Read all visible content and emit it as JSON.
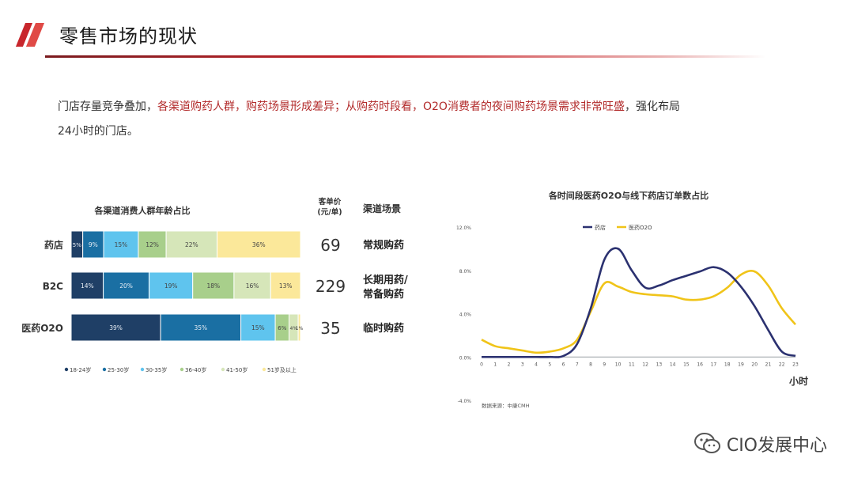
{
  "header": {
    "title": "零售市场的现状",
    "accent_colors": [
      "#c8262c",
      "#e04a46"
    ]
  },
  "intro": {
    "part1": "门店存量竞争叠加，",
    "part2": "各渠道购药人群，购药场景形成差异；从购药时段看，O2O消费者的夜间购药场景需求非常旺盛",
    "part3": "，强化布局",
    "part4": "24小时的门店。"
  },
  "watermark": {
    "text": "CIO发展中心",
    "icon": "wechat-icon"
  },
  "chart_data": [
    {
      "type": "bar",
      "orientation": "horizontal",
      "stacked": true,
      "title": "各渠道消费人群年龄占比",
      "categories": [
        "药店",
        "B2C",
        "医药O2O"
      ],
      "series": [
        {
          "name": "18-24岁",
          "color": "#1f3f66",
          "values": [
            5,
            14,
            39
          ]
        },
        {
          "name": "25-30岁",
          "color": "#1a6fa3",
          "values": [
            9,
            20,
            35
          ]
        },
        {
          "name": "30-35岁",
          "color": "#5fc4ee",
          "values": [
            15,
            19,
            15
          ]
        },
        {
          "name": "36-40岁",
          "color": "#a8cf8b",
          "values": [
            12,
            18,
            6
          ]
        },
        {
          "name": "41-50岁",
          "color": "#d6e6b9",
          "values": [
            22,
            16,
            4
          ]
        },
        {
          "name": "51岁及以上",
          "color": "#fbe89a",
          "values": [
            36,
            13,
            1
          ]
        }
      ],
      "data_labels": [
        [
          "5%",
          "9%",
          "15%",
          "12%",
          "22%",
          "36%"
        ],
        [
          "14%",
          "20%",
          "19%",
          "18%",
          "16%",
          "13%"
        ],
        [
          "39%",
          "35%",
          "15%",
          "6%",
          "4%",
          "1%"
        ]
      ],
      "side_table": {
        "price_header": "客单价\n(元/单)",
        "scene_header": "渠道场景",
        "rows": [
          {
            "price": "69",
            "scene": "常规购药"
          },
          {
            "price": "229",
            "scene": "长期用药/\n常备购药"
          },
          {
            "price": "35",
            "scene": "临时购药"
          }
        ]
      }
    },
    {
      "type": "line",
      "title": "各时间段医药O2O与线下药店订单数占比",
      "xlabel": "小时",
      "ylabel": "",
      "x": [
        0,
        1,
        2,
        3,
        4,
        5,
        6,
        7,
        8,
        9,
        10,
        11,
        12,
        13,
        14,
        15,
        16,
        17,
        18,
        19,
        20,
        21,
        22,
        23
      ],
      "ylim": [
        -4,
        12
      ],
      "yticks": [
        "-4.0%",
        "0.0%",
        "4.0%",
        "8.0%",
        "12.0%"
      ],
      "legend_position": "top",
      "series": [
        {
          "name": "药店",
          "color": "#2b3170",
          "values": [
            0,
            0,
            0,
            0,
            0,
            0,
            0.1,
            1.2,
            4.5,
            9.0,
            10.0,
            8.0,
            6.4,
            6.6,
            7.1,
            7.5,
            7.9,
            8.3,
            7.8,
            6.5,
            4.7,
            2.5,
            0.5,
            0.1
          ]
        },
        {
          "name": "医药O2O",
          "color": "#f0c419",
          "values": [
            1.6,
            1.0,
            0.8,
            0.6,
            0.4,
            0.5,
            0.8,
            1.6,
            4.2,
            6.8,
            6.5,
            6.0,
            5.8,
            5.7,
            5.6,
            5.3,
            5.3,
            5.6,
            6.4,
            7.6,
            7.9,
            6.6,
            4.5,
            3.0
          ]
        }
      ],
      "source_note": "数据来源：中康CMH"
    }
  ]
}
